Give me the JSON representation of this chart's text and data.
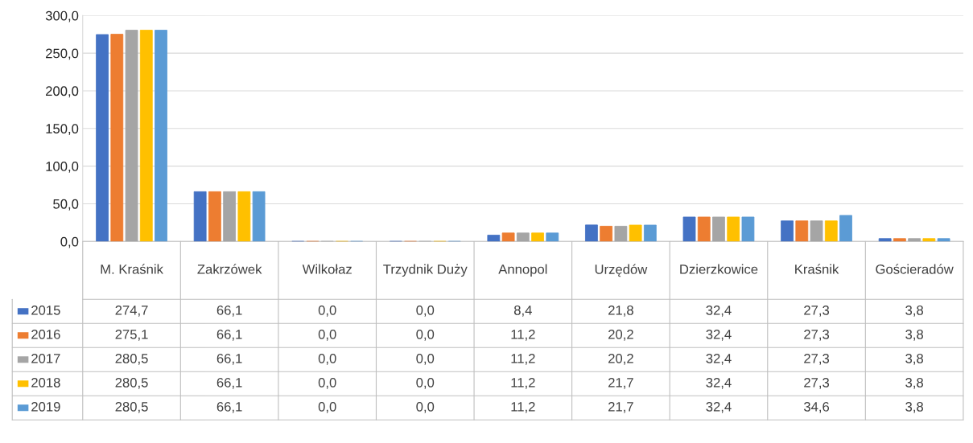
{
  "chart_data": {
    "type": "bar",
    "categories": [
      "M. Kraśnik",
      "Zakrzówek",
      "Wilkołaz",
      "Trzydnik Duży",
      "Annopol",
      "Urzędów",
      "Dzierzkowice",
      "Kraśnik",
      "Gościeradów"
    ],
    "series": [
      {
        "name": "2015",
        "color": "#4472c4",
        "values": [
          274.7,
          66.1,
          0.0,
          0.0,
          8.4,
          21.8,
          32.4,
          27.3,
          3.8
        ],
        "value_labels": [
          "274,7",
          "66,1",
          "0,0",
          "0,0",
          "8,4",
          "21,8",
          "32,4",
          "27,3",
          "3,8"
        ]
      },
      {
        "name": "2016",
        "color": "#ed7d31",
        "values": [
          275.1,
          66.1,
          0.0,
          0.0,
          11.2,
          20.2,
          32.4,
          27.3,
          3.8
        ],
        "value_labels": [
          "275,1",
          "66,1",
          "0,0",
          "0,0",
          "11,2",
          "20,2",
          "32,4",
          "27,3",
          "3,8"
        ]
      },
      {
        "name": "2017",
        "color": "#a5a5a5",
        "values": [
          280.5,
          66.1,
          0.0,
          0.0,
          11.2,
          20.2,
          32.4,
          27.3,
          3.8
        ],
        "value_labels": [
          "280,5",
          "66,1",
          "0,0",
          "0,0",
          "11,2",
          "20,2",
          "32,4",
          "27,3",
          "3,8"
        ]
      },
      {
        "name": "2018",
        "color": "#ffc000",
        "values": [
          280.5,
          66.1,
          0.0,
          0.0,
          11.2,
          21.7,
          32.4,
          27.3,
          3.8
        ],
        "value_labels": [
          "280,5",
          "66,1",
          "0,0",
          "0,0",
          "11,2",
          "21,7",
          "32,4",
          "27,3",
          "3,8"
        ]
      },
      {
        "name": "2019",
        "color": "#5b9bd5",
        "values": [
          280.5,
          66.1,
          0.0,
          0.0,
          11.2,
          21.7,
          32.4,
          34.6,
          3.8
        ],
        "value_labels": [
          "280,5",
          "66,1",
          "0,0",
          "0,0",
          "11,2",
          "21,7",
          "32,4",
          "34,6",
          "3,8"
        ]
      }
    ],
    "ylim": [
      0,
      300
    ],
    "yticks": [
      {
        "value": 0,
        "label": "0,0"
      },
      {
        "value": 50,
        "label": "50,0"
      },
      {
        "value": 100,
        "label": "100,0"
      },
      {
        "value": 150,
        "label": "150,0"
      },
      {
        "value": 200,
        "label": "200,0"
      },
      {
        "value": 250,
        "label": "250,0"
      },
      {
        "value": 300,
        "label": "300,0"
      }
    ],
    "grid": "y",
    "legend": "bottom left"
  }
}
